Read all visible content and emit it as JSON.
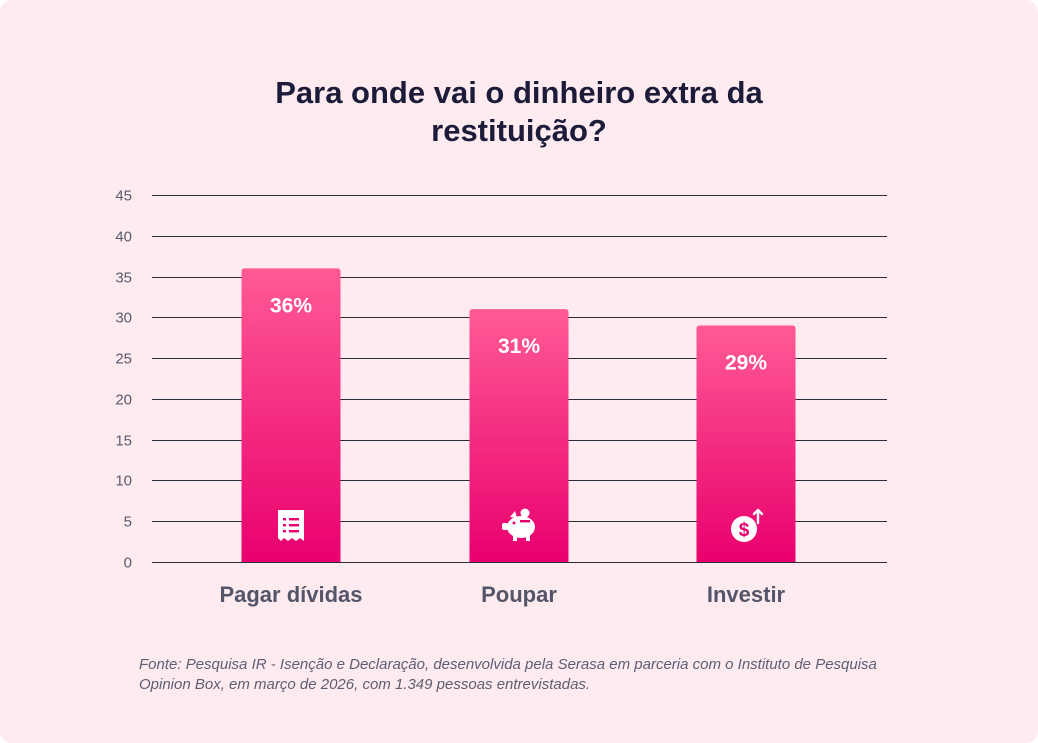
{
  "title": "Para onde vai o dinheiro extra da restituição?",
  "source": "Fonte: Pesquisa IR - Isenção e Declaração, desenvolvida pela Serasa em parceria com o Instituto de Pesquisa Opinion Box, em março de 2026, com 1.349 pessoas entrevistadas.",
  "chart_data": {
    "type": "bar",
    "title": "Para onde vai o dinheiro extra da restituição?",
    "categories": [
      "Pagar dívidas",
      "Poupar",
      "Investir"
    ],
    "values": [
      36,
      31,
      29
    ],
    "data_labels": [
      "36%",
      "31%",
      "29%"
    ],
    "icons": [
      "receipt-icon",
      "piggy-bank-icon",
      "dollar-invest-icon"
    ],
    "ylim": [
      0,
      45
    ],
    "yticks": [
      0,
      5,
      10,
      15,
      20,
      25,
      30,
      35,
      40,
      45
    ],
    "xlabel": "",
    "ylabel": "",
    "grid": true,
    "legend": "none"
  },
  "colors": {
    "background": "#fdebf0",
    "bar_top": "#ff5a95",
    "bar_bottom": "#e9006e",
    "grid": "#2b2b3a",
    "title": "#1c1c3a",
    "axis_text": "#5a5a6e",
    "category_text": "#55556a",
    "label_text": "#ffffff"
  }
}
